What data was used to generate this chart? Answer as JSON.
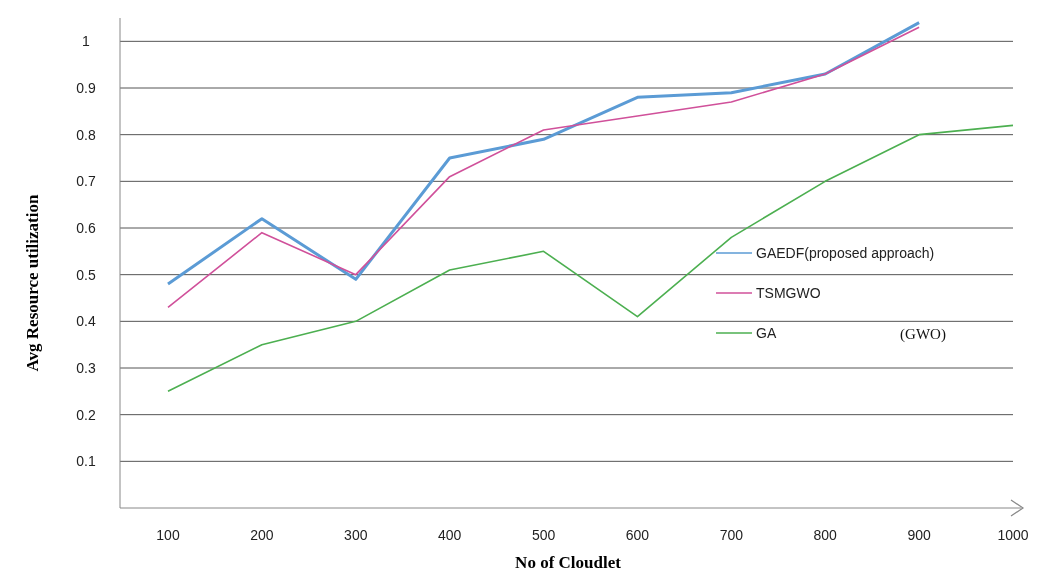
{
  "chart_data": {
    "type": "line",
    "xlabel": "No of Cloudlet",
    "ylabel": "Avg Resource utilization",
    "categories": [
      "100",
      "200",
      "300",
      "400",
      "500",
      "600",
      "700",
      "800",
      "900",
      "1000"
    ],
    "series": [
      {
        "name": "GAEDF(proposed approach)",
        "color": "#5b9bd5",
        "values": [
          0.48,
          0.62,
          0.49,
          0.75,
          0.79,
          0.88,
          0.89,
          0.93,
          1.04,
          null
        ]
      },
      {
        "name": "TSMGWO",
        "color": "#d0509a",
        "values": [
          0.43,
          0.59,
          0.5,
          0.71,
          0.81,
          0.84,
          0.87,
          0.93,
          1.03,
          null
        ]
      },
      {
        "name": "GA",
        "color": "#4caf50",
        "values": [
          0.25,
          0.35,
          0.4,
          0.51,
          0.55,
          0.41,
          0.58,
          0.7,
          0.8,
          0.82
        ]
      }
    ],
    "ylim": [
      0,
      1.05
    ],
    "yticks": [
      0.1,
      0.2,
      0.3,
      0.4,
      0.5,
      0.6,
      0.7,
      0.8,
      0.9,
      {
        "value": 1,
        "label": "1"
      }
    ],
    "grid": "y",
    "legend": "right",
    "marker": "none",
    "line_style": "solid",
    "annotations": [
      "(GWO)"
    ]
  }
}
